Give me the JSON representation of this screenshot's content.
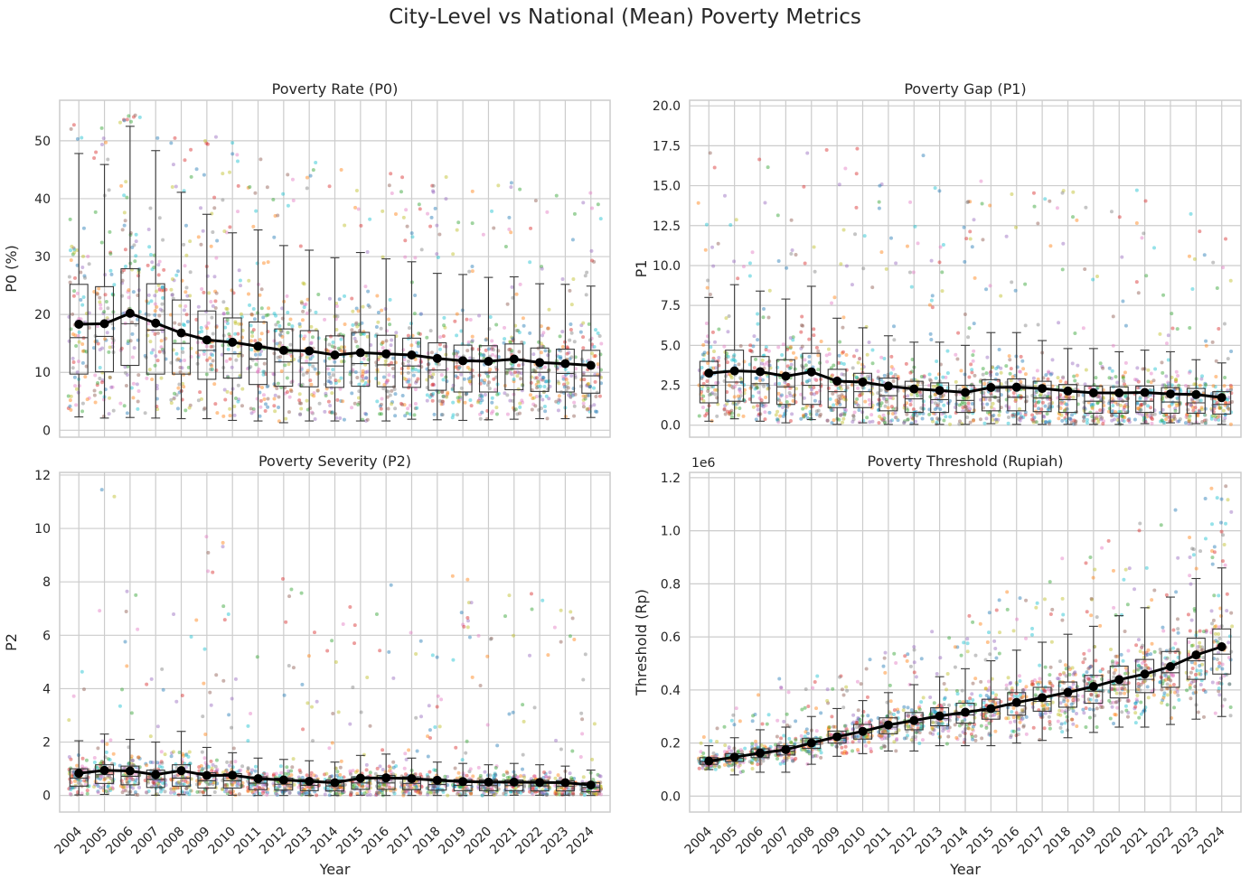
{
  "figure": {
    "title": "City-Level vs National (Mean) Poverty Metrics"
  },
  "colors": {
    "mean_line": "#000000",
    "box_edge": "#3a3a3a",
    "grid": "#cccccc",
    "axes_edge": "#cccccc",
    "jitter_palette": [
      "#1f77b4",
      "#ff7f0e",
      "#2ca02c",
      "#d62728",
      "#9467bd",
      "#8c564b",
      "#e377c2",
      "#7f7f7f",
      "#bcbd22",
      "#17becf"
    ]
  },
  "years": [
    "2004",
    "2005",
    "2006",
    "2007",
    "2008",
    "2009",
    "2010",
    "2011",
    "2012",
    "2013",
    "2014",
    "2015",
    "2016",
    "2017",
    "2018",
    "2019",
    "2020",
    "2021",
    "2022",
    "2023",
    "2024"
  ],
  "chart_data": [
    {
      "type": "box",
      "title": "Poverty Rate (P0)",
      "xlabel": "",
      "ylabel": "P0 (%)",
      "ylim": [
        -1.2,
        57
      ],
      "yticks": [
        0,
        10,
        20,
        30,
        40,
        50
      ],
      "ytick_labels": [
        "0",
        "10",
        "20",
        "30",
        "40",
        "50"
      ],
      "offset_label": "",
      "grid": true,
      "mean_line": [
        18.3,
        18.4,
        20.2,
        18.5,
        16.8,
        15.6,
        15.2,
        14.5,
        13.8,
        13.7,
        13.0,
        13.4,
        13.2,
        13.0,
        12.4,
        12.0,
        11.9,
        12.3,
        11.7,
        11.5,
        11.2
      ],
      "box": {
        "q1": [
          9.7,
          10.1,
          11.2,
          9.7,
          9.7,
          8.8,
          9.0,
          7.9,
          7.6,
          7.5,
          7.4,
          7.6,
          7.5,
          7.4,
          6.9,
          6.6,
          6.6,
          7.0,
          6.7,
          6.6,
          6.4
        ],
        "median": [
          16.0,
          16.2,
          18.4,
          17.3,
          15.0,
          13.8,
          13.2,
          12.3,
          11.8,
          11.6,
          11.1,
          11.5,
          11.3,
          11.1,
          10.4,
          10.0,
          10.0,
          10.6,
          10.0,
          9.8,
          9.4
        ],
        "q3": [
          25.2,
          24.8,
          27.9,
          25.3,
          22.5,
          20.6,
          19.4,
          18.7,
          17.5,
          17.2,
          16.3,
          16.9,
          16.4,
          15.9,
          15.1,
          14.7,
          14.6,
          14.9,
          14.2,
          14.0,
          13.8
        ],
        "whisker_low": [
          2.3,
          2.1,
          2.2,
          2.1,
          2.0,
          2.0,
          1.7,
          1.6,
          1.3,
          1.6,
          1.6,
          1.6,
          1.6,
          1.9,
          1.8,
          1.7,
          1.8,
          1.9,
          2.0,
          2.0,
          2.2
        ],
        "whisker_high": [
          47.8,
          45.9,
          52.5,
          48.3,
          41.1,
          37.3,
          34.1,
          34.6,
          31.9,
          31.1,
          29.8,
          30.7,
          29.6,
          29.1,
          27.1,
          26.9,
          26.4,
          26.5,
          25.3,
          25.2,
          24.9
        ]
      },
      "scatter_max": [
        54,
        53,
        54.5,
        53,
        51,
        52,
        50,
        48,
        45,
        47.5,
        46,
        46,
        45,
        44,
        44,
        44,
        43,
        43,
        43,
        41,
        41
      ]
    },
    {
      "type": "box",
      "title": "Poverty Gap (P1)",
      "xlabel": "",
      "ylabel": "P1",
      "ylim": [
        -0.75,
        20.35
      ],
      "yticks": [
        0,
        2.5,
        5,
        7.5,
        10,
        12.5,
        15,
        17.5,
        20
      ],
      "ytick_labels": [
        "0.0",
        "2.5",
        "5.0",
        "7.5",
        "10.0",
        "12.5",
        "15.0",
        "17.5",
        "20.0"
      ],
      "offset_label": "",
      "grid": true,
      "mean_line": [
        3.26,
        3.4,
        3.35,
        3.07,
        3.34,
        2.76,
        2.7,
        2.45,
        2.27,
        2.18,
        2.05,
        2.36,
        2.38,
        2.3,
        2.14,
        2.03,
        2.02,
        2.05,
        1.96,
        1.92,
        1.73
      ],
      "box": {
        "q1": [
          1.4,
          1.5,
          1.4,
          1.3,
          1.3,
          1.1,
          1.1,
          0.9,
          0.8,
          0.8,
          0.8,
          0.9,
          0.9,
          0.85,
          0.8,
          0.75,
          0.75,
          0.8,
          0.75,
          0.75,
          0.7
        ],
        "median": [
          2.5,
          2.7,
          2.6,
          2.4,
          2.5,
          2.1,
          2.1,
          1.85,
          1.65,
          1.6,
          1.55,
          1.75,
          1.75,
          1.7,
          1.6,
          1.5,
          1.5,
          1.5,
          1.45,
          1.4,
          1.3
        ],
        "q3": [
          4.0,
          4.7,
          4.3,
          4.1,
          4.5,
          3.5,
          3.25,
          2.95,
          2.75,
          2.65,
          2.5,
          2.85,
          2.9,
          2.75,
          2.55,
          2.45,
          2.4,
          2.45,
          2.35,
          2.3,
          2.1
        ],
        "whisker_low": [
          0.25,
          0.4,
          0.25,
          0.15,
          0.35,
          0.05,
          0.15,
          0.05,
          0.05,
          0.05,
          0.05,
          0.1,
          0.05,
          0.05,
          0.05,
          0.05,
          0.05,
          0.1,
          0.15,
          0.1,
          0.05
        ],
        "whisker_high": [
          8.0,
          8.8,
          8.4,
          7.9,
          8.7,
          6.7,
          6.1,
          5.6,
          5.2,
          5.2,
          5.0,
          5.8,
          5.8,
          5.3,
          4.8,
          4.8,
          4.6,
          4.7,
          4.6,
          4.1,
          3.9
        ]
      },
      "scatter_max": [
        17.8,
        15,
        17.6,
        14,
        17.6,
        17.5,
        19.2,
        16.4,
        18,
        16.9,
        14.8,
        15.9,
        15.3,
        14.6,
        14.8,
        16.4,
        14,
        15,
        14,
        14,
        12.8
      ]
    },
    {
      "type": "box",
      "title": "Poverty Severity (P2)",
      "xlabel": "Year",
      "ylabel": "P2",
      "ylim": [
        -0.62,
        12.1
      ],
      "yticks": [
        0,
        2,
        4,
        6,
        8,
        10,
        12
      ],
      "ytick_labels": [
        "0",
        "2",
        "4",
        "6",
        "8",
        "10",
        "12"
      ],
      "offset_label": "",
      "grid": true,
      "mean_line": [
        0.83,
        0.94,
        0.92,
        0.78,
        0.93,
        0.75,
        0.76,
        0.63,
        0.58,
        0.53,
        0.48,
        0.65,
        0.66,
        0.63,
        0.57,
        0.52,
        0.5,
        0.5,
        0.49,
        0.48,
        0.39
      ],
      "box": {
        "q1": [
          0.35,
          0.45,
          0.4,
          0.3,
          0.35,
          0.28,
          0.28,
          0.22,
          0.2,
          0.18,
          0.17,
          0.23,
          0.23,
          0.22,
          0.2,
          0.18,
          0.18,
          0.18,
          0.17,
          0.17,
          0.14
        ],
        "median": [
          0.65,
          0.78,
          0.72,
          0.6,
          0.65,
          0.55,
          0.55,
          0.46,
          0.42,
          0.38,
          0.36,
          0.47,
          0.47,
          0.45,
          0.41,
          0.38,
          0.37,
          0.37,
          0.36,
          0.34,
          0.3
        ],
        "q3": [
          1.0,
          1.15,
          1.1,
          0.95,
          1.15,
          0.85,
          0.82,
          0.7,
          0.65,
          0.6,
          0.58,
          0.7,
          0.75,
          0.7,
          0.62,
          0.6,
          0.58,
          0.58,
          0.57,
          0.55,
          0.48
        ],
        "whisker_low": [
          0.02,
          0.04,
          0.02,
          0.01,
          0.03,
          0.0,
          0.01,
          0.0,
          0.0,
          0.0,
          0.0,
          0.01,
          0.0,
          0.0,
          0.0,
          0.0,
          0.0,
          0.01,
          0.01,
          0.01,
          0.0
        ],
        "whisker_high": [
          2.05,
          2.3,
          2.1,
          2.0,
          2.4,
          1.8,
          1.6,
          1.4,
          1.35,
          1.3,
          1.25,
          1.5,
          1.55,
          1.4,
          1.25,
          1.2,
          1.15,
          1.2,
          1.15,
          1.1,
          0.95
        ]
      },
      "scatter_max": [
        5.8,
        11.6,
        8.0,
        6.0,
        7.3,
        9.7,
        10.2,
        7.7,
        8.9,
        8.6,
        7.2,
        7.2,
        8.3,
        6.2,
        6.1,
        8.7,
        6.3,
        8.1,
        7.6,
        7.0,
        5.4
      ]
    },
    {
      "type": "box",
      "title": "Poverty Threshold (Rupiah)",
      "xlabel": "Year",
      "ylabel": "Threshold (Rp)",
      "ylim": [
        -0.06,
        1.22
      ],
      "yticks": [
        0,
        0.2,
        0.4,
        0.6,
        0.8,
        1.0,
        1.2
      ],
      "ytick_labels": [
        "0.0",
        "0.2",
        "0.4",
        "0.6",
        "0.8",
        "1.0",
        "1.2"
      ],
      "offset_label": "1e6",
      "grid": true,
      "mean_line": [
        0.132,
        0.147,
        0.162,
        0.175,
        0.2,
        0.224,
        0.244,
        0.268,
        0.285,
        0.302,
        0.316,
        0.33,
        0.353,
        0.371,
        0.391,
        0.413,
        0.439,
        0.46,
        0.488,
        0.532,
        0.563
      ],
      "box": {
        "q1": [
          0.12,
          0.13,
          0.145,
          0.155,
          0.18,
          0.2,
          0.215,
          0.235,
          0.25,
          0.265,
          0.275,
          0.29,
          0.305,
          0.32,
          0.335,
          0.35,
          0.37,
          0.39,
          0.41,
          0.44,
          0.46
        ],
        "median": [
          0.13,
          0.143,
          0.16,
          0.17,
          0.195,
          0.218,
          0.238,
          0.26,
          0.277,
          0.292,
          0.306,
          0.32,
          0.34,
          0.357,
          0.375,
          0.395,
          0.42,
          0.44,
          0.465,
          0.51,
          0.535
        ],
        "q3": [
          0.145,
          0.16,
          0.178,
          0.19,
          0.218,
          0.245,
          0.27,
          0.295,
          0.315,
          0.333,
          0.35,
          0.365,
          0.39,
          0.41,
          0.43,
          0.455,
          0.49,
          0.515,
          0.545,
          0.595,
          0.63
        ],
        "whisker_low": [
          0.1,
          0.08,
          0.09,
          0.09,
          0.12,
          0.15,
          0.16,
          0.17,
          0.17,
          0.19,
          0.19,
          0.19,
          0.2,
          0.21,
          0.22,
          0.24,
          0.26,
          0.26,
          0.27,
          0.29,
          0.3
        ],
        "whisker_high": [
          0.19,
          0.22,
          0.25,
          0.26,
          0.3,
          0.33,
          0.36,
          0.39,
          0.42,
          0.45,
          0.48,
          0.51,
          0.55,
          0.58,
          0.61,
          0.64,
          0.68,
          0.71,
          0.75,
          0.82,
          0.86
        ]
      },
      "scatter_max": [
        0.26,
        0.34,
        0.39,
        0.45,
        0.46,
        0.47,
        0.52,
        0.55,
        0.62,
        0.64,
        0.68,
        0.74,
        0.79,
        0.85,
        0.94,
        0.98,
        1.02,
        1.05,
        1.1,
        1.15,
        1.18
      ]
    }
  ]
}
